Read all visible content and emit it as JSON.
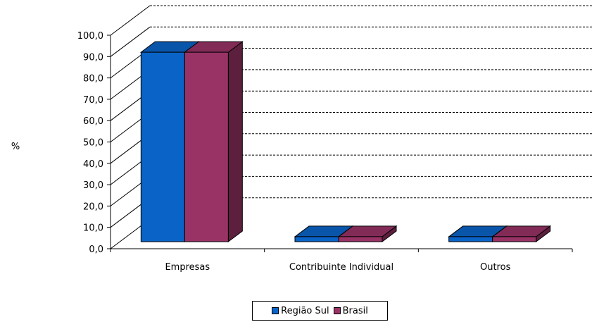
{
  "chart_data": {
    "type": "bar",
    "ylabel": "%",
    "xlabel": "",
    "title": "",
    "categories": [
      "Empresas",
      "Contribuinte Individual",
      "Outros"
    ],
    "series": [
      {
        "name": "Região Sul",
        "values": [
          95.0,
          2.5,
          2.5
        ],
        "color": "#0a64c8"
      },
      {
        "name": "Brasil",
        "values": [
          95.0,
          2.5,
          2.5
        ],
        "color": "#993366"
      }
    ],
    "ylim": [
      0,
      100
    ],
    "yticks": [
      "0,0",
      "10,0",
      "20,0",
      "30,0",
      "40,0",
      "50,0",
      "60,0",
      "70,0",
      "80,0",
      "90,0",
      "100,0"
    ],
    "grid": "dashed horizontal",
    "legend_position": "bottom"
  }
}
